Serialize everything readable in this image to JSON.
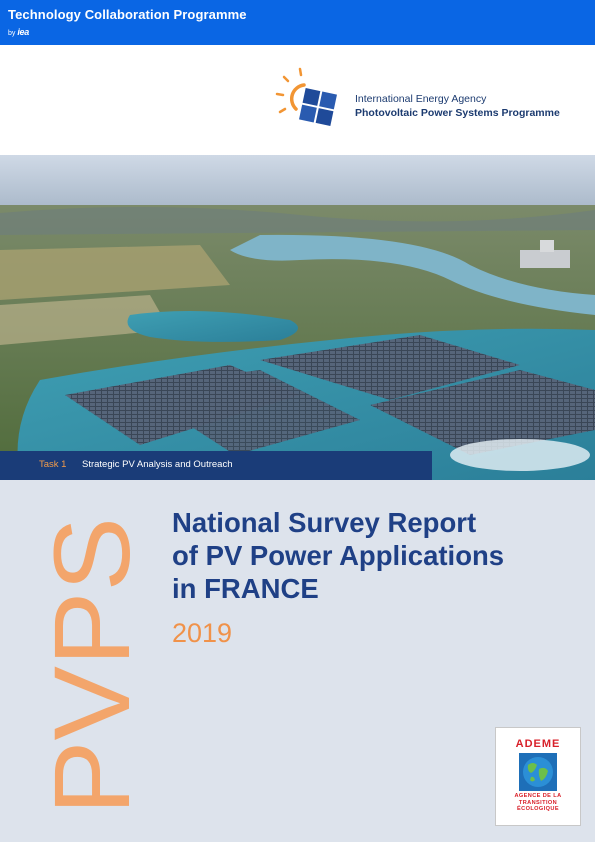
{
  "header": {
    "programme": "Technology Collaboration Programme",
    "by_prefix": "by",
    "by_org": "iea"
  },
  "iea_pvps": {
    "line1": "International Energy Agency",
    "line2": "Photovoltaic Power Systems Programme"
  },
  "task": {
    "number": "Task 1",
    "title": "Strategic PV Analysis and Outreach"
  },
  "cover": {
    "side_mark": "PVPS",
    "title_lines": [
      "National Survey Report",
      "of PV Power Applications",
      "in FRANCE"
    ],
    "year": "2019"
  },
  "ademe": {
    "name": "ADEME",
    "tagline": [
      "AGENCE DE LA",
      "TRANSITION",
      "ÉCOLOGIQUE"
    ]
  },
  "colors": {
    "top_blue": "#0a66e4",
    "navy": "#1f4086",
    "task_bar": "#1a3c78",
    "orange": "#f0924a",
    "background": "#dde3ec",
    "ademe_red": "#d8202a"
  }
}
